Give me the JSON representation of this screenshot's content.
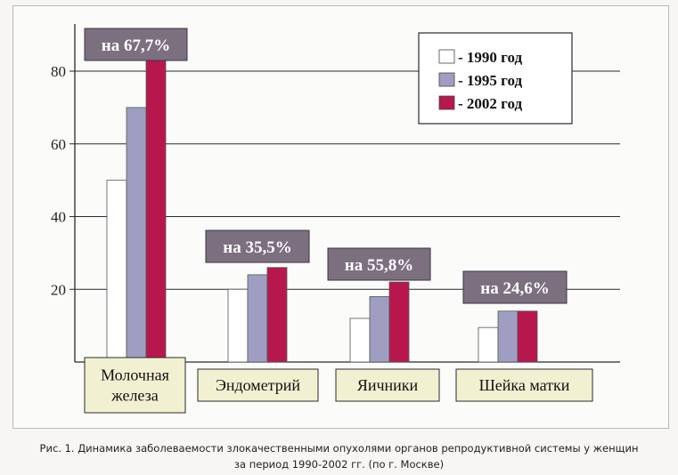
{
  "chart_data": {
    "type": "bar",
    "categories": [
      "Молочная железа",
      "Эндометрий",
      "Яичники",
      "Шейка матки"
    ],
    "category_labels": [
      [
        "Молочная",
        "железа"
      ],
      [
        "Эндометрий"
      ],
      [
        "Яичники"
      ],
      [
        "Шейка матки"
      ]
    ],
    "series": [
      {
        "name": "- 1990 год",
        "values": [
          50,
          20,
          12,
          9.5
        ]
      },
      {
        "name": "- 1995 год",
        "values": [
          70,
          24,
          18,
          14
        ]
      },
      {
        "name": "- 2002 год",
        "values": [
          84,
          26,
          22,
          14
        ]
      }
    ],
    "annotations": [
      "на 67,7%",
      "на 35,5%",
      "на 55,8%",
      "на 24,6%"
    ],
    "yticks": [
      20,
      40,
      60,
      80
    ],
    "ylim": [
      0,
      90
    ],
    "grid": true,
    "legend_position": "top-right",
    "colors": [
      "#ffffff",
      "#9f9ec2",
      "#b8174d"
    ]
  },
  "caption": {
    "line1": "Рис. 1. Динамика заболеваемости злокачественными опухолями  органов репродуктивной системы у женщин",
    "line2": "за период 1990-2002 гг.  (по г. Москве)"
  }
}
